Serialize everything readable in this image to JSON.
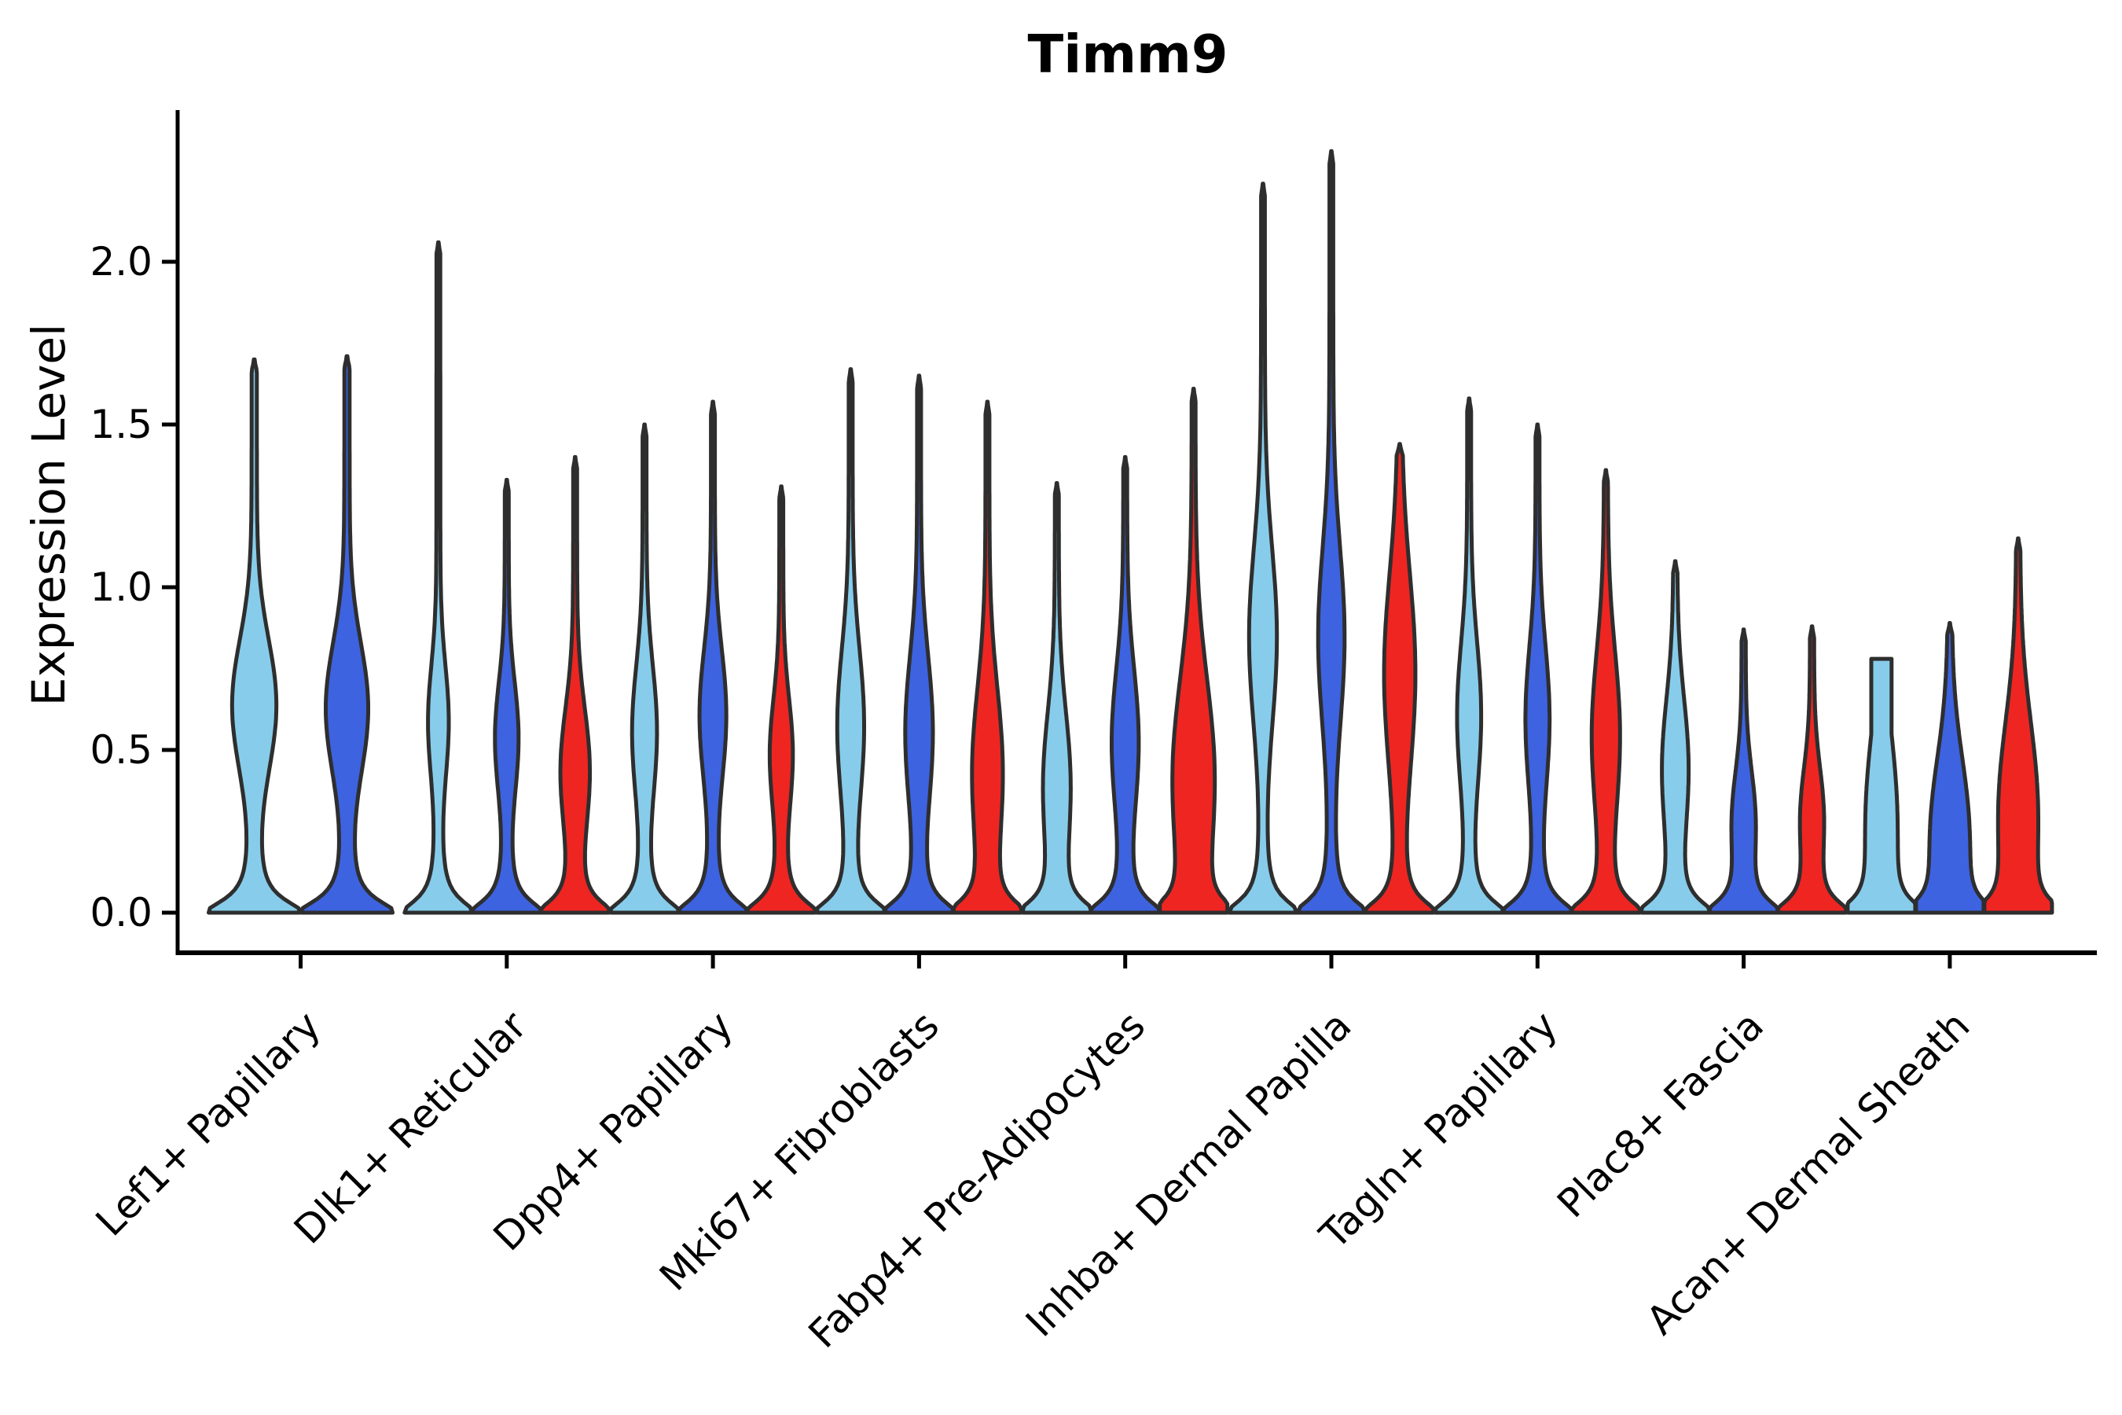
{
  "chart_data": {
    "type": "violin",
    "title": "Timm9",
    "ylabel": "Expression Level",
    "xlabel": "",
    "ytick_labels": [
      "0.0",
      "0.5",
      "1.0",
      "1.5",
      "2.0"
    ],
    "ytick_values": [
      0.0,
      0.5,
      1.0,
      1.5,
      2.0
    ],
    "ylim": [
      -0.12,
      2.47
    ],
    "grid": false,
    "legend_position": "none",
    "colors": {
      "skyblue": "#87CDEB",
      "blue": "#3D63E0",
      "red": "#EF2522",
      "outline": "#2E2E2E",
      "axis": "#000000"
    },
    "categories": [
      "Lef1+ Papillary",
      "Dlk1+ Reticular",
      "Dpp4+ Papillary",
      "Mki67+ Fibroblasts",
      "Fabp4+ Pre-Adipocytes",
      "Inhba+ Dermal Papilla",
      "Tagln+ Papillary",
      "Plac8+ Fascia",
      "Acan+ Dermal Sheath"
    ],
    "groups": [
      {
        "category": "Lef1+ Papillary",
        "violins": [
          {
            "color": "skyblue",
            "max_expression": 1.7,
            "bulge_peak": 0.64,
            "bulge_spread": 0.2,
            "bulge_width": 0.42,
            "flat_top": 0
          },
          {
            "color": "blue",
            "max_expression": 1.71,
            "bulge_peak": 0.63,
            "bulge_spread": 0.2,
            "bulge_width": 0.4,
            "flat_top": 0
          }
        ]
      },
      {
        "category": "Dlk1+ Reticular",
        "violins": [
          {
            "color": "skyblue",
            "max_expression": 2.06,
            "bulge_peak": 0.59,
            "bulge_spread": 0.17,
            "bulge_width": 0.24,
            "flat_top": 0
          },
          {
            "color": "blue",
            "max_expression": 1.33,
            "bulge_peak": 0.54,
            "bulge_spread": 0.17,
            "bulge_width": 0.28,
            "flat_top": 0
          },
          {
            "color": "red",
            "max_expression": 1.4,
            "bulge_peak": 0.44,
            "bulge_spread": 0.19,
            "bulge_width": 0.36,
            "flat_top": 0
          }
        ]
      },
      {
        "category": "Dpp4+ Papillary",
        "violins": [
          {
            "color": "skyblue",
            "max_expression": 1.5,
            "bulge_peak": 0.56,
            "bulge_spread": 0.2,
            "bulge_width": 0.3,
            "flat_top": 0
          },
          {
            "color": "blue",
            "max_expression": 1.57,
            "bulge_peak": 0.61,
            "bulge_spread": 0.2,
            "bulge_width": 0.33,
            "flat_top": 0
          },
          {
            "color": "red",
            "max_expression": 1.31,
            "bulge_peak": 0.49,
            "bulge_spread": 0.17,
            "bulge_width": 0.27,
            "flat_top": 0
          }
        ]
      },
      {
        "category": "Mki67+ Fibroblasts",
        "violins": [
          {
            "color": "skyblue",
            "max_expression": 1.67,
            "bulge_peak": 0.58,
            "bulge_spread": 0.23,
            "bulge_width": 0.33,
            "flat_top": 0
          },
          {
            "color": "blue",
            "max_expression": 1.65,
            "bulge_peak": 0.56,
            "bulge_spread": 0.23,
            "bulge_width": 0.34,
            "flat_top": 0
          },
          {
            "color": "red",
            "max_expression": 1.57,
            "bulge_peak": 0.44,
            "bulge_spread": 0.25,
            "bulge_width": 0.38,
            "flat_top": 0
          }
        ]
      },
      {
        "category": "Fabp4+ Pre-Adipocytes",
        "violins": [
          {
            "color": "skyblue",
            "max_expression": 1.32,
            "bulge_peak": 0.4,
            "bulge_spread": 0.22,
            "bulge_width": 0.33,
            "flat_top": 0
          },
          {
            "color": "blue",
            "max_expression": 1.4,
            "bulge_peak": 0.53,
            "bulge_spread": 0.22,
            "bulge_width": 0.33,
            "flat_top": 0
          },
          {
            "color": "red",
            "max_expression": 1.61,
            "bulge_peak": 0.42,
            "bulge_spread": 0.3,
            "bulge_width": 0.55,
            "flat_top": 0
          }
        ]
      },
      {
        "category": "Inhba+ Dermal Papilla",
        "violins": [
          {
            "color": "skyblue",
            "max_expression": 2.24,
            "bulge_peak": 0.85,
            "bulge_spread": 0.27,
            "bulge_width": 0.35,
            "flat_top": 0
          },
          {
            "color": "blue",
            "max_expression": 2.34,
            "bulge_peak": 0.85,
            "bulge_spread": 0.27,
            "bulge_width": 0.33,
            "flat_top": 0
          },
          {
            "color": "red",
            "max_expression": 1.44,
            "bulge_peak": 0.74,
            "bulge_spread": 0.3,
            "bulge_width": 0.4,
            "flat_top": 0
          }
        ]
      },
      {
        "category": "Tagln+ Papillary",
        "violins": [
          {
            "color": "skyblue",
            "max_expression": 1.58,
            "bulge_peak": 0.61,
            "bulge_spread": 0.22,
            "bulge_width": 0.29,
            "flat_top": 0
          },
          {
            "color": "blue",
            "max_expression": 1.5,
            "bulge_peak": 0.6,
            "bulge_spread": 0.22,
            "bulge_width": 0.29,
            "flat_top": 0
          },
          {
            "color": "red",
            "max_expression": 1.36,
            "bulge_peak": 0.55,
            "bulge_spread": 0.25,
            "bulge_width": 0.35,
            "flat_top": 0
          }
        ]
      },
      {
        "category": "Plac8+ Fascia",
        "violins": [
          {
            "color": "skyblue",
            "max_expression": 1.08,
            "bulge_peak": 0.45,
            "bulge_spread": 0.21,
            "bulge_width": 0.32,
            "flat_top": 0
          },
          {
            "color": "blue",
            "max_expression": 0.87,
            "bulge_peak": 0.29,
            "bulge_spread": 0.15,
            "bulge_width": 0.26,
            "flat_top": 0
          },
          {
            "color": "red",
            "max_expression": 0.88,
            "bulge_peak": 0.3,
            "bulge_spread": 0.15,
            "bulge_width": 0.26,
            "flat_top": 0
          }
        ]
      },
      {
        "category": "Acan+ Dermal Sheath",
        "violins": [
          {
            "color": "skyblue",
            "max_expression": 0.78,
            "bulge_peak": 0.3,
            "bulge_spread": 0.25,
            "bulge_width": 0.38,
            "flat_top": 0.3
          },
          {
            "color": "blue",
            "max_expression": 0.89,
            "bulge_peak": 0.25,
            "bulge_spread": 0.23,
            "bulge_width": 0.48,
            "flat_top": 0
          },
          {
            "color": "red",
            "max_expression": 1.15,
            "bulge_peak": 0.32,
            "bulge_spread": 0.27,
            "bulge_width": 0.5,
            "flat_top": 0
          }
        ]
      }
    ]
  }
}
